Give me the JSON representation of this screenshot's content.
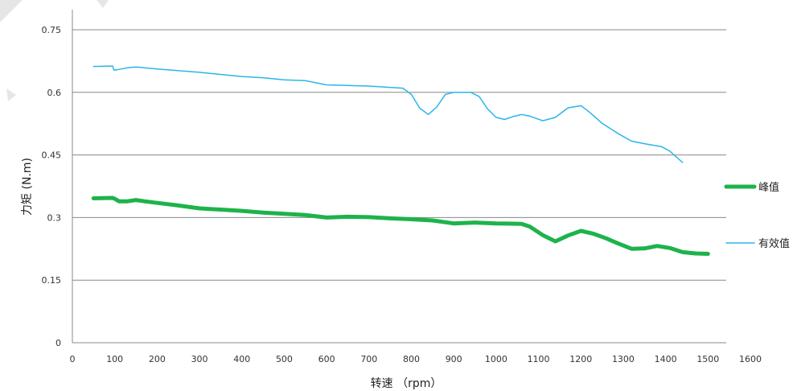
{
  "chart_data": {
    "type": "line",
    "title": "",
    "xlabel": "转速 （rpm）",
    "ylabel": "力矩 (N.m)",
    "xlim": [
      0,
      1600
    ],
    "ylim": [
      0,
      0.75
    ],
    "xticks": [
      0,
      100,
      200,
      300,
      400,
      500,
      600,
      700,
      800,
      900,
      1000,
      1100,
      1200,
      1300,
      1400,
      1500,
      1600
    ],
    "yticks": [
      0,
      0.15,
      0.3,
      0.45,
      0.6,
      0.75
    ],
    "ytick_labels": [
      "0",
      "0.15",
      "0.3",
      "0.45",
      "0.6",
      "0.75"
    ],
    "grid": "horizontal",
    "legend_position": "right",
    "series": [
      {
        "name": "峰值",
        "color": "#1db34a",
        "width": "thick",
        "x": [
          50,
          95,
          100,
          110,
          130,
          150,
          170,
          200,
          250,
          300,
          350,
          400,
          450,
          500,
          550,
          600,
          650,
          700,
          750,
          800,
          850,
          900,
          950,
          1000,
          1060,
          1080,
          1110,
          1140,
          1170,
          1200,
          1230,
          1260,
          1290,
          1320,
          1350,
          1380,
          1410,
          1440,
          1470,
          1500
        ],
        "y": [
          0.346,
          0.347,
          0.345,
          0.339,
          0.339,
          0.342,
          0.339,
          0.335,
          0.329,
          0.322,
          0.319,
          0.316,
          0.312,
          0.309,
          0.306,
          0.3,
          0.302,
          0.301,
          0.298,
          0.296,
          0.293,
          0.286,
          0.288,
          0.286,
          0.285,
          0.278,
          0.258,
          0.243,
          0.257,
          0.268,
          0.261,
          0.25,
          0.237,
          0.225,
          0.226,
          0.232,
          0.227,
          0.217,
          0.214,
          0.213
        ]
      },
      {
        "name": "有效值",
        "color": "#2ab5ea",
        "width": "thin",
        "x": [
          50,
          90,
          95,
          98,
          105,
          130,
          150,
          200,
          300,
          400,
          450,
          500,
          550,
          600,
          700,
          780,
          800,
          820,
          840,
          860,
          880,
          900,
          940,
          960,
          980,
          1000,
          1020,
          1040,
          1060,
          1080,
          1110,
          1140,
          1170,
          1200,
          1220,
          1250,
          1290,
          1320,
          1350,
          1390,
          1410,
          1440
        ],
        "y": [
          0.662,
          0.663,
          0.663,
          0.653,
          0.654,
          0.659,
          0.661,
          0.656,
          0.648,
          0.638,
          0.635,
          0.63,
          0.628,
          0.618,
          0.615,
          0.61,
          0.595,
          0.562,
          0.547,
          0.565,
          0.595,
          0.6,
          0.6,
          0.59,
          0.56,
          0.54,
          0.535,
          0.542,
          0.547,
          0.543,
          0.532,
          0.54,
          0.563,
          0.568,
          0.553,
          0.526,
          0.5,
          0.483,
          0.477,
          0.47,
          0.459,
          0.432
        ]
      }
    ]
  }
}
